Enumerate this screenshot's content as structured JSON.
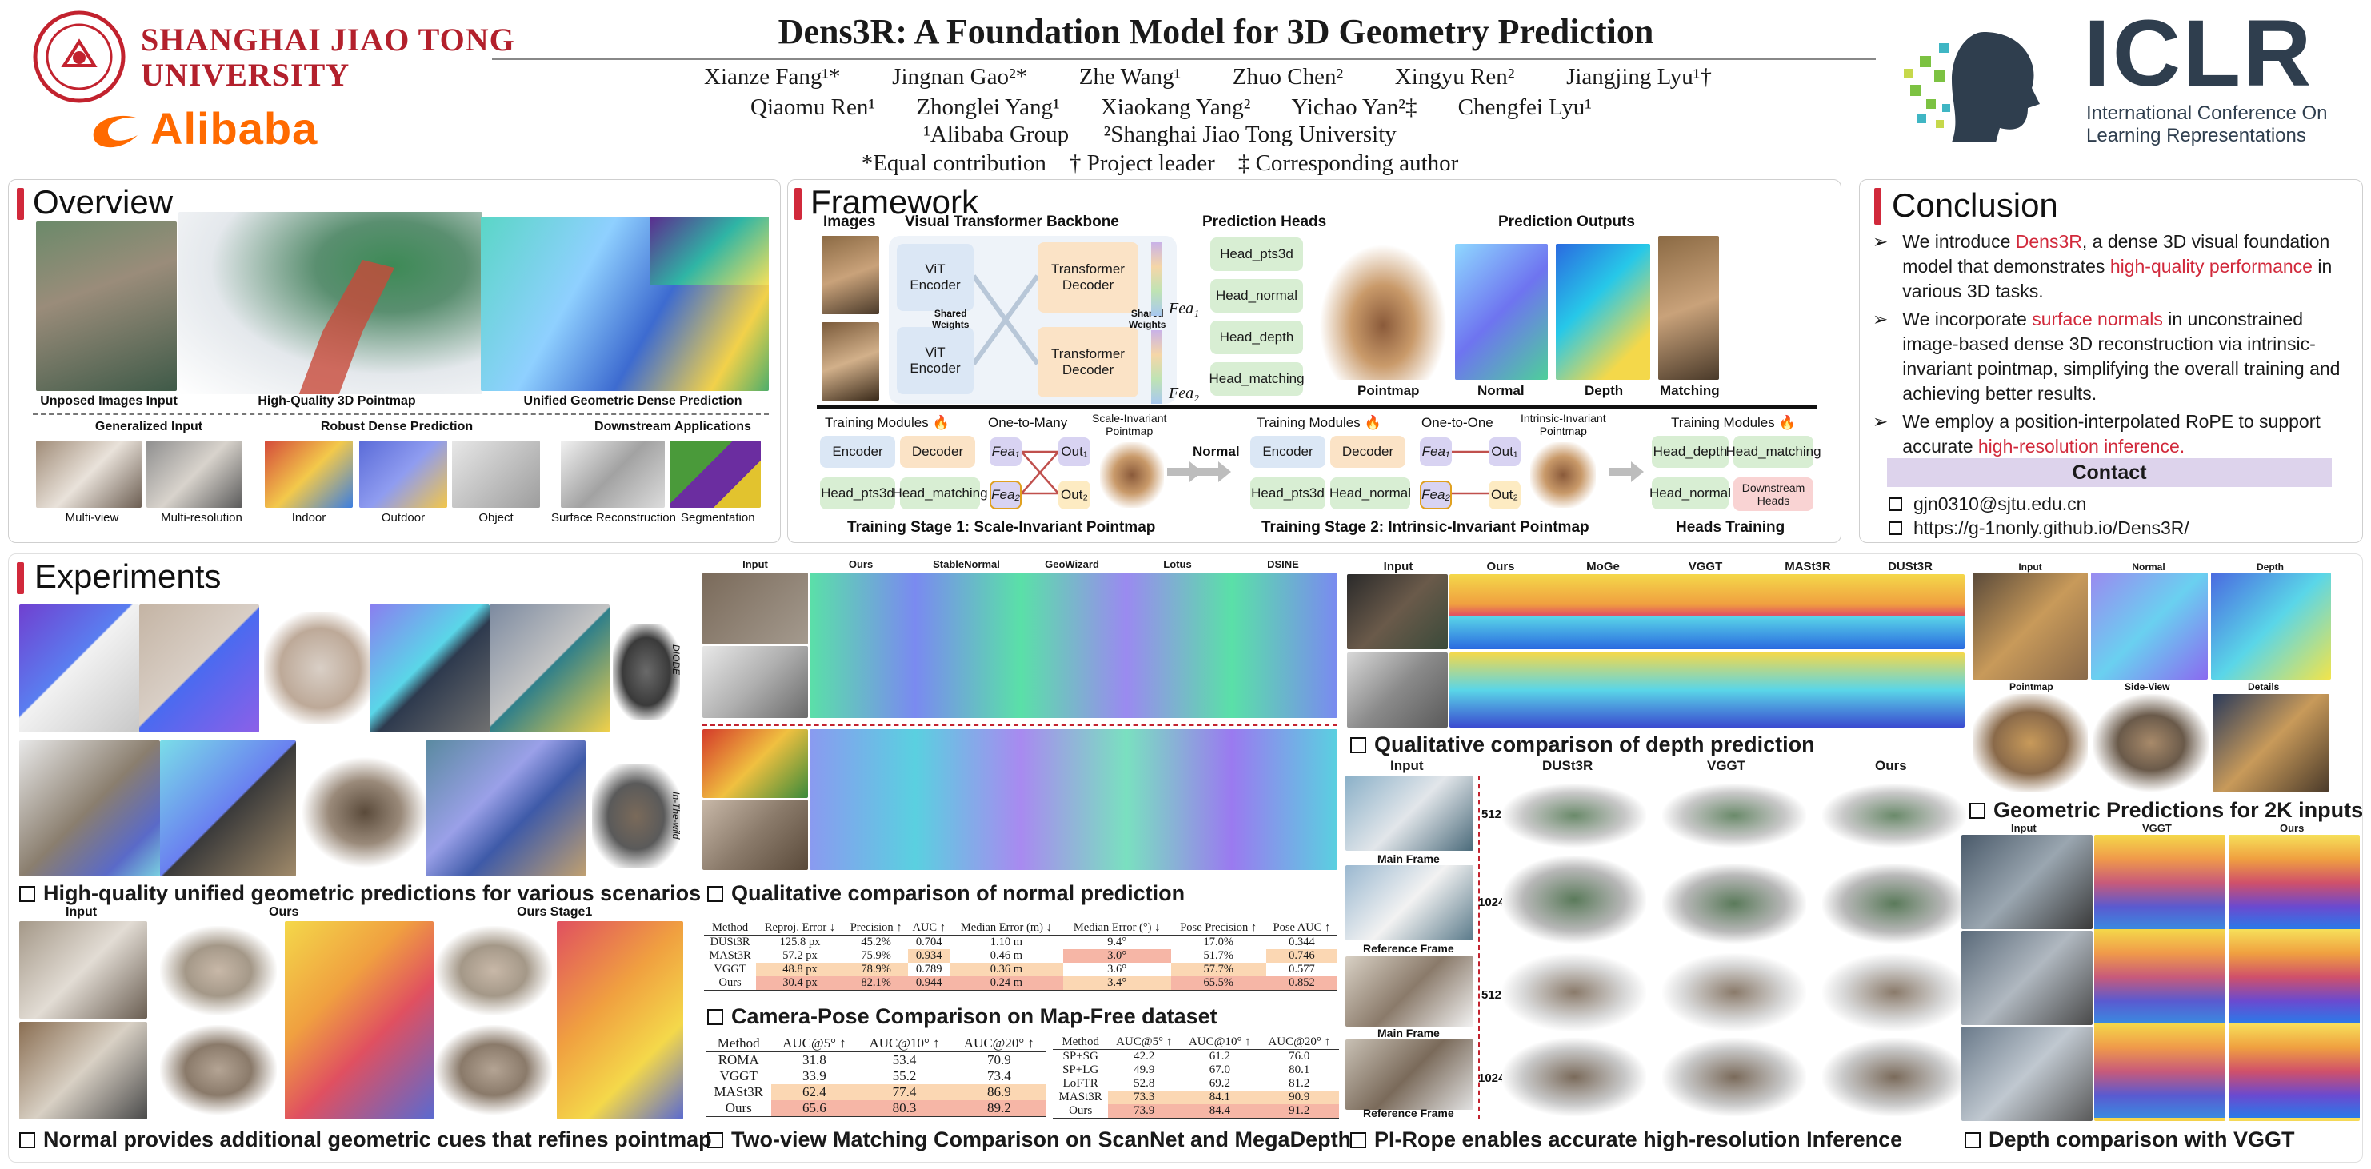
{
  "header": {
    "title": "Dens3R: A Foundation Model for 3D Geometry Prediction",
    "sjtu_line1": "SHANGHAI JIAO TONG",
    "sjtu_line2": "UNIVERSITY",
    "alibaba": "Alibaba",
    "authors_row1": [
      "Xianze Fang¹*",
      "Jingnan Gao²*",
      "Zhe Wang¹",
      "Zhuo Chen²",
      "Xingyu Ren²",
      "Jiangjing Lyu¹†"
    ],
    "authors_row2": [
      "Qiaomu Ren¹",
      "Zhonglei Yang¹",
      "Xiaokang Yang²",
      "Yichao Yan²‡",
      "Chengfei Lyu¹"
    ],
    "affil_line": "¹Alibaba Group      ²Shanghai Jiao Tong University",
    "notes_line": "*Equal contribution    † Project leader    ‡ Corresponding author",
    "iclr": "ICLR",
    "iclr_sub1": "International Conference On",
    "iclr_sub2": "Learning Representations"
  },
  "overview": {
    "title": "Overview",
    "captions": [
      "Unposed Images Input",
      "High-Quality 3D Pointmap",
      "Unified Geometric Dense Prediction"
    ],
    "groups": [
      "Generalized Input",
      "Robust Dense Prediction",
      "Downstream Applications"
    ],
    "thumbs": [
      "Multi-view",
      "Multi-resolution",
      "Indoor",
      "Outdoor",
      "Object",
      "Surface Reconstruction",
      "Segmentation"
    ]
  },
  "framework": {
    "title": "Framework",
    "col_images": "Images",
    "col_backbone": "Visual Transformer Backbone",
    "col_heads": "Prediction Heads",
    "col_outputs": "Prediction Outputs",
    "vit_encoder": "ViT\nEncoder",
    "transformer_decoder": "Transformer\nDecoder",
    "shared_weights": "Shared\nWeights",
    "fea1": "Fea₁",
    "fea2": "Fea₂",
    "heads": [
      "Head_pts3d",
      "Head_normal",
      "Head_depth",
      "Head_matching"
    ],
    "outputs": [
      "Pointmap",
      "Normal",
      "Depth",
      "Matching"
    ],
    "training_modules": "Training Modules 🔥",
    "one_to_many": "One-to-Many",
    "one_to_one": "One-to-One",
    "encoder": "Encoder",
    "decoder": "Decoder",
    "head_pts3d": "Head_pts3d",
    "head_matching": "Head_matching",
    "head_normal": "Head_normal",
    "head_depth": "Head_depth",
    "out1": "Out₁",
    "out2": "Out₂",
    "scale_invariant_pointmap": "Scale-Invariant\nPointmap",
    "intrinsic_invariant_pointmap": "Intrinsic-Invariant\nPointmap",
    "normal_arrow": "Normal",
    "downstream_heads": "Downstream\nHeads",
    "stage1": "Training Stage 1: Scale-Invariant Pointmap",
    "stage2": "Training Stage 2: Intrinsic-Invariant Pointmap",
    "stage3": "Heads Training"
  },
  "conclusion": {
    "title": "Conclusion",
    "bullets": [
      {
        "pre": "We introduce ",
        "hl": "Dens3R",
        "mid": ", a dense 3D visual foundation model that demonstrates ",
        "hl2": "high-quality performance",
        "post": " in various 3D tasks."
      },
      {
        "pre": "We incorporate ",
        "hl": "surface normals",
        "mid": " in unconstrained image-based dense 3D reconstruction via intrinsic-invariant pointmap,  simplifying the overall training and achieving better results.",
        "hl2": "",
        "post": ""
      },
      {
        "pre": "We employ a position-interpolated RoPE to support accurate ",
        "hl": "high-resolution inference.",
        "mid": "",
        "hl2": "",
        "post": ""
      }
    ],
    "contact_title": "Contact",
    "email": "gjn0310@sjtu.edu.cn",
    "url": "https://g-1nonly.github.io/Dens3R/"
  },
  "experiments": {
    "title": "Experiments",
    "cap_unified": "High-quality unified geometric predictions for various scenarios",
    "cap_refine": "Normal provides additional geometric cues that refines pointmap",
    "refine_cols": [
      "Input",
      "Ours",
      "Ours Stage1"
    ],
    "normal_cols": [
      "Input",
      "Ours",
      "StableNormal",
      "GeoWizard",
      "Lotus",
      "DSINE"
    ],
    "normal_rows": [
      "DIODE",
      "In-The-wild"
    ],
    "cap_normal": "Qualitative comparison of normal prediction",
    "cap_pose": "Camera-Pose Comparison on Map-Free dataset",
    "cap_match": "Two-view Matching Comparison on ScanNet and MegaDepth",
    "depth_cols": [
      "Input",
      "Ours",
      "MoGe",
      "VGGT",
      "MASt3R",
      "DUSt3R"
    ],
    "cap_depth": "Qualitative comparison of depth prediction",
    "hr_cols": [
      "Input",
      "DUSt3R",
      "VGGT",
      "Ours"
    ],
    "hr_rows": [
      "512",
      "1024",
      "512",
      "1024"
    ],
    "hr_frames": [
      "Main Frame",
      "Reference Frame",
      "Main Frame",
      "Reference Frame"
    ],
    "cap_hr": "PI-Rope enables accurate high-resolution Inference",
    "k2_cols_top": [
      "Input",
      "Normal",
      "Depth"
    ],
    "k2_cols_bottom": [
      "Pointmap",
      "Side-View",
      "Details"
    ],
    "cap_2k": "Geometric Predictions for 2K inputs",
    "vggt_cols": [
      "Input",
      "VGGT",
      "Ours"
    ],
    "cap_vggt": "Depth comparison with VGGT"
  },
  "pose_table": {
    "headers": [
      "Method",
      "Reproj. Error ↓",
      "Precision ↑",
      "AUC ↑",
      "Median Error (m) ↓",
      "Median Error (°) ↓",
      "Pose Precision ↑",
      "Pose AUC ↑"
    ],
    "rows": [
      [
        "DUSt3R",
        "125.8 px",
        "45.2%",
        "0.704",
        "1.10 m",
        "9.4°",
        "17.0%",
        "0.344"
      ],
      [
        "MASt3R",
        "57.2 px",
        "75.9%",
        "0.934",
        "0.46 m",
        "3.0°",
        "51.7%",
        "0.746"
      ],
      [
        "VGGT",
        "48.8 px",
        "78.9%",
        "0.789",
        "0.36 m",
        "3.6°",
        "57.7%",
        "0.577"
      ],
      [
        "Ours",
        "30.4 px",
        "82.1%",
        "0.944",
        "0.24 m",
        "3.4°",
        "65.5%",
        "0.852"
      ]
    ]
  },
  "match_table_a": {
    "headers": [
      "Method",
      "AUC@5° ↑",
      "AUC@10° ↑",
      "AUC@20° ↑"
    ],
    "rows": [
      [
        "ROMA",
        "31.8",
        "53.4",
        "70.9"
      ],
      [
        "VGGT",
        "33.9",
        "55.2",
        "73.4"
      ],
      [
        "MASt3R",
        "62.4",
        "77.4",
        "86.9"
      ],
      [
        "Ours",
        "65.6",
        "80.3",
        "89.2"
      ]
    ]
  },
  "match_table_b": {
    "headers": [
      "Method",
      "AUC@5° ↑",
      "AUC@10° ↑",
      "AUC@20° ↑"
    ],
    "rows": [
      [
        "SP+SG",
        "42.2",
        "61.2",
        "76.0"
      ],
      [
        "SP+LG",
        "49.9",
        "67.0",
        "80.1"
      ],
      [
        "LoFTR",
        "52.8",
        "69.2",
        "81.2"
      ],
      [
        "MASt3R",
        "73.3",
        "84.1",
        "90.9"
      ],
      [
        "Ours",
        "73.9",
        "84.4",
        "91.2"
      ]
    ]
  },
  "colors": {
    "accent": "#d1293b",
    "highlight": "#f6b6a6",
    "highlight2": "#fbd7b3",
    "contact_bg": "#ddd3ec"
  }
}
